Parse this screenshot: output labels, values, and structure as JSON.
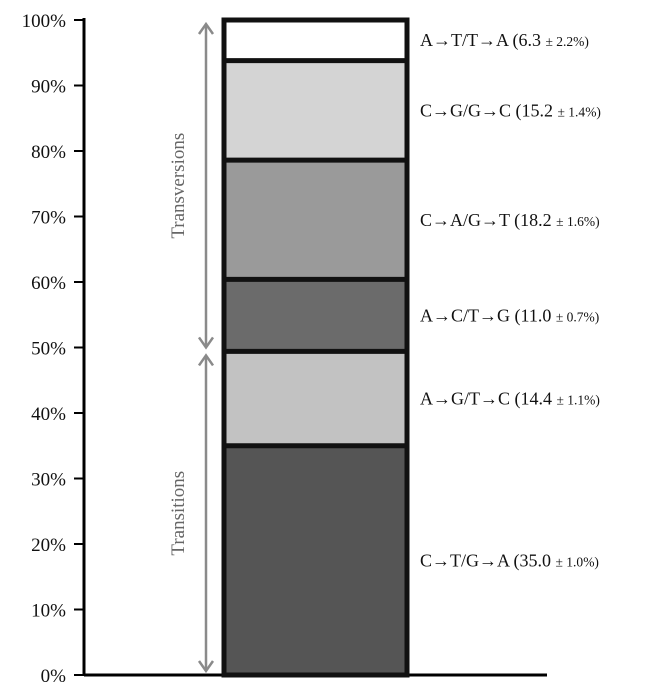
{
  "chart_data": {
    "type": "bar",
    "stacked": true,
    "ylim": [
      0,
      100
    ],
    "yticks": [
      0,
      10,
      20,
      30,
      40,
      50,
      60,
      70,
      80,
      90,
      100
    ],
    "ytick_labels": [
      "0%",
      "10%",
      "20%",
      "30%",
      "40%",
      "50%",
      "60%",
      "70%",
      "80%",
      "90%",
      "100%"
    ],
    "grid": false,
    "segments": [
      {
        "label": "C→T/G→A",
        "value": 35.0,
        "error": "± 1.0%",
        "value_text": "(35.0",
        "color": "#555555"
      },
      {
        "label": "A→G/T→C",
        "value": 14.4,
        "error": "± 1.1%",
        "value_text": "(14.4",
        "color": "#c2c2c2"
      },
      {
        "label": "A→C/T→G",
        "value": 11.0,
        "error": "± 0.7%",
        "value_text": "(11.0",
        "color": "#6b6b6b"
      },
      {
        "label": "C→A/G→T",
        "value": 18.2,
        "error": "± 1.6%",
        "value_text": "(18.2",
        "color": "#9a9a9a"
      },
      {
        "label": "C→G/G→C",
        "value": 15.2,
        "error": "± 1.4%",
        "value_text": "(15.2",
        "color": "#d4d4d4"
      },
      {
        "label": "A→T/T→A",
        "value": 6.3,
        "error": "± 2.2%",
        "value_text": "(6.3",
        "color": "#ffffff"
      }
    ],
    "groups": [
      {
        "name": "Transitions",
        "from": 0,
        "to": 49.4
      },
      {
        "name": "Transversions",
        "from": 49.4,
        "to": 100
      }
    ]
  }
}
